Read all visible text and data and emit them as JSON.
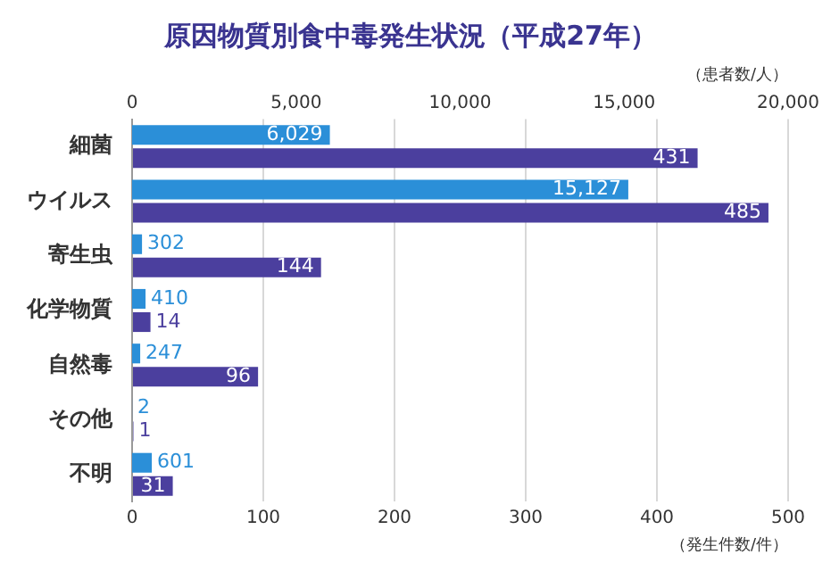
{
  "chart_data": {
    "type": "bar",
    "orientation": "horizontal",
    "title": "原因物質別食中毒発生状況（平成27年）",
    "categories": [
      "細菌",
      "ウイルス",
      "寄生虫",
      "化学物質",
      "自然毒",
      "その他",
      "不明"
    ],
    "series": [
      {
        "name": null,
        "color": "#2b8fd8",
        "axis": "x2",
        "values": [
          6029,
          15127,
          302,
          410,
          247,
          2,
          601
        ],
        "value_labels": [
          "6,029",
          "15,127",
          "302",
          "410",
          "247",
          "2",
          "601"
        ]
      },
      {
        "name": null,
        "color": "#4b3f9e",
        "values": [
          431,
          485,
          144,
          14,
          96,
          1,
          31
        ],
        "value_labels": [
          "431",
          "485",
          "144",
          "14",
          "96",
          "1",
          "31"
        ]
      }
    ],
    "xlim": [
      0,
      500
    ],
    "xticks": [
      0,
      100,
      200,
      300,
      400,
      500
    ],
    "xlabel": "（発生件数/件）",
    "x2lim": [
      0,
      20000
    ],
    "x2ticks": [
      {
        "value": 0,
        "label": "0"
      },
      {
        "value": 5000,
        "label": "5,000"
      },
      {
        "value": 10000,
        "label": "10,000"
      },
      {
        "value": 15000,
        "label": "15,000"
      },
      {
        "value": 20000,
        "label": "20,000"
      }
    ],
    "x2label": "（患者数/人）",
    "grid": "x",
    "legend": false
  }
}
